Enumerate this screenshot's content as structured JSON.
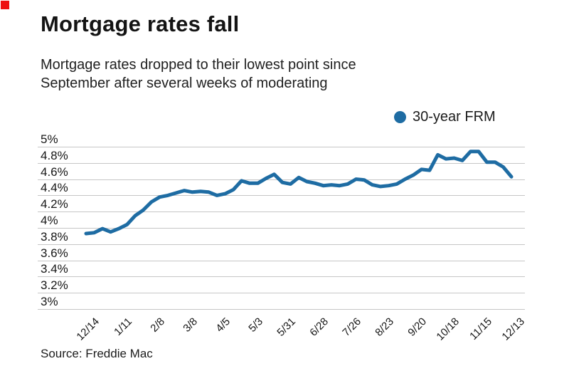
{
  "marker_color": "#ee1111",
  "chart_data": {
    "type": "line",
    "title": "Mortgage rates fall",
    "subtitle_lines": [
      "Mortgage rates dropped to their lowest point since",
      "September after several weeks of moderating"
    ],
    "source": "Source: Freddie Mac",
    "grid": "horizontal",
    "legend_position": "top-right",
    "ylim": [
      3,
      5
    ],
    "y_tick_step": 0.2,
    "y_tick_labels_top_to_bottom": [
      "5%",
      "4.8%",
      "4.6%",
      "4.4%",
      "4.2%",
      "4%",
      "3.8%",
      "3.6%",
      "3.4%",
      "3.2%",
      "3%"
    ],
    "x_tick_labels": [
      "12/14",
      "1/11",
      "2/8",
      "3/8",
      "4/5",
      "5/3",
      "5/31",
      "6/28",
      "7/26",
      "8/23",
      "9/20",
      "10/18",
      "11/15",
      "12/13"
    ],
    "x_ticks_every_n_points": 4,
    "series": [
      {
        "name": "30-year FRM",
        "color": "#1e6ca3",
        "x": [
          "12/14",
          "12/21",
          "12/28",
          "1/4",
          "1/11",
          "1/18",
          "1/25",
          "2/1",
          "2/8",
          "2/15",
          "2/22",
          "3/1",
          "3/8",
          "3/15",
          "3/22",
          "3/29",
          "4/5",
          "4/12",
          "4/19",
          "4/26",
          "5/3",
          "5/10",
          "5/17",
          "5/24",
          "5/31",
          "6/7",
          "6/14",
          "6/21",
          "6/28",
          "7/5",
          "7/12",
          "7/19",
          "7/26",
          "8/2",
          "8/9",
          "8/16",
          "8/23",
          "8/30",
          "9/6",
          "9/13",
          "9/20",
          "9/27",
          "10/4",
          "10/11",
          "10/18",
          "10/25",
          "11/1",
          "11/8",
          "11/15",
          "11/21",
          "11/29",
          "12/6",
          "12/13"
        ],
        "values": [
          3.93,
          3.94,
          3.99,
          3.95,
          3.99,
          4.04,
          4.15,
          4.22,
          4.32,
          4.38,
          4.4,
          4.43,
          4.46,
          4.44,
          4.45,
          4.44,
          4.4,
          4.42,
          4.47,
          4.58,
          4.55,
          4.55,
          4.61,
          4.66,
          4.56,
          4.54,
          4.62,
          4.57,
          4.55,
          4.52,
          4.53,
          4.52,
          4.54,
          4.6,
          4.59,
          4.53,
          4.51,
          4.52,
          4.54,
          4.6,
          4.65,
          4.72,
          4.71,
          4.9,
          4.85,
          4.86,
          4.83,
          4.94,
          4.94,
          4.81,
          4.81,
          4.75,
          4.63
        ]
      }
    ]
  }
}
